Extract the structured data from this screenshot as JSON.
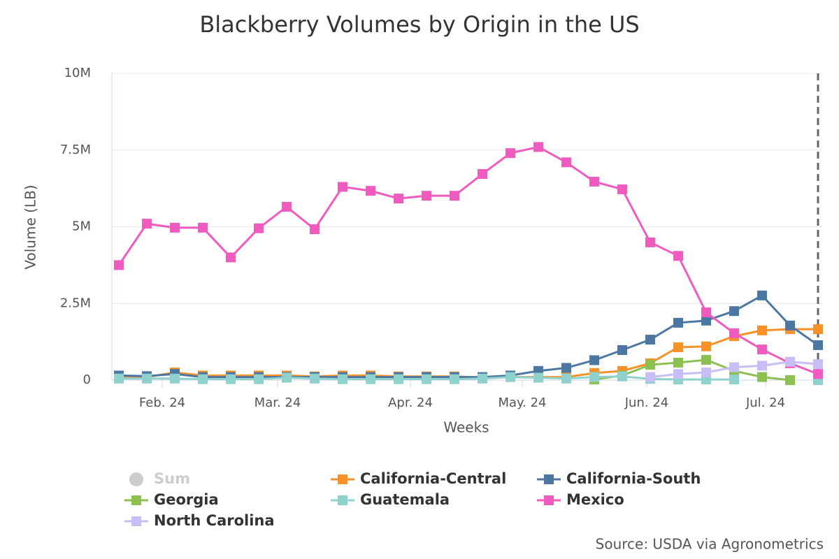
{
  "chart_data": {
    "type": "line",
    "title": "Blackberry Volumes by Origin in the US",
    "y_label": "Volume (LB)",
    "x_label": "Weeks",
    "source": "Source: USDA via Agronometrics",
    "x": [
      0,
      1,
      2,
      3,
      4,
      5,
      6,
      7,
      8,
      9,
      10,
      11,
      12,
      13,
      14,
      15,
      16,
      17,
      18,
      19,
      20,
      21,
      22,
      23,
      24,
      25
    ],
    "xlim": [
      -0.25,
      25.125
    ],
    "xticks": [
      {
        "value": 1.55,
        "label": "Feb. 24"
      },
      {
        "value": 5.675,
        "label": "Mar. 24"
      },
      {
        "value": 10.425,
        "label": "Apr. 24"
      },
      {
        "value": 14.425,
        "label": "May. 24"
      },
      {
        "value": 18.875,
        "label": "Jun. 24"
      },
      {
        "value": 23.125,
        "label": "Jul. 24"
      }
    ],
    "ylim": [
      0,
      10000000
    ],
    "yticks": [
      0,
      {
        "value": 2500000,
        "label": "2.5M"
      },
      {
        "value": 5000000,
        "label": "5M"
      },
      {
        "value": 7500000,
        "label": "7.5M"
      },
      {
        "value": 10000000,
        "label": "10M"
      }
    ],
    "grid": true,
    "plot_line_x": 25,
    "legend": "bottom",
    "series": [
      {
        "name": "Sum",
        "color": "#cccccc",
        "hidden": true
      },
      {
        "name": "California-Central",
        "color": "#f7922a",
        "values": [
          100000,
          100000,
          250000,
          150000,
          150000,
          150000,
          150000,
          120000,
          150000,
          150000,
          120000,
          120000,
          120000,
          80000,
          100000,
          100000,
          100000,
          230000,
          300000,
          550000,
          1070000,
          1100000,
          1430000,
          1620000,
          1660000,
          1660000
        ]
      },
      {
        "name": "California-South",
        "color": "#4d77a3",
        "values": [
          150000,
          130000,
          200000,
          100000,
          100000,
          100000,
          100000,
          100000,
          100000,
          100000,
          100000,
          100000,
          100000,
          100000,
          150000,
          300000,
          400000,
          650000,
          980000,
          1320000,
          1870000,
          1940000,
          2250000,
          2760000,
          1780000,
          1140000
        ]
      },
      {
        "name": "Georgia",
        "color": "#8cc152",
        "values": [
          null,
          null,
          null,
          null,
          null,
          null,
          null,
          null,
          null,
          null,
          null,
          null,
          null,
          null,
          null,
          null,
          null,
          20000,
          150000,
          500000,
          570000,
          660000,
          300000,
          100000,
          0,
          null
        ]
      },
      {
        "name": "Guatemala",
        "color": "#8fd1cc",
        "values": [
          50000,
          50000,
          50000,
          30000,
          30000,
          30000,
          80000,
          50000,
          30000,
          30000,
          30000,
          30000,
          30000,
          50000,
          100000,
          80000,
          50000,
          100000,
          120000,
          40000,
          20000,
          20000,
          20000,
          null,
          null,
          0
        ]
      },
      {
        "name": "Mexico",
        "color": "#f05bc0",
        "values": [
          3750000,
          5100000,
          4970000,
          4970000,
          4000000,
          4950000,
          5650000,
          4920000,
          6300000,
          6170000,
          5920000,
          6010000,
          6010000,
          6720000,
          7400000,
          7600000,
          7100000,
          6470000,
          6220000,
          4490000,
          4050000,
          2210000,
          1530000,
          1000000,
          550000,
          200000
        ]
      },
      {
        "name": "North Carolina",
        "color": "#c9bdf5",
        "values": [
          null,
          null,
          null,
          null,
          null,
          null,
          null,
          null,
          null,
          null,
          null,
          null,
          null,
          null,
          null,
          null,
          null,
          null,
          null,
          100000,
          200000,
          250000,
          420000,
          470000,
          600000,
          520000
        ]
      }
    ]
  }
}
